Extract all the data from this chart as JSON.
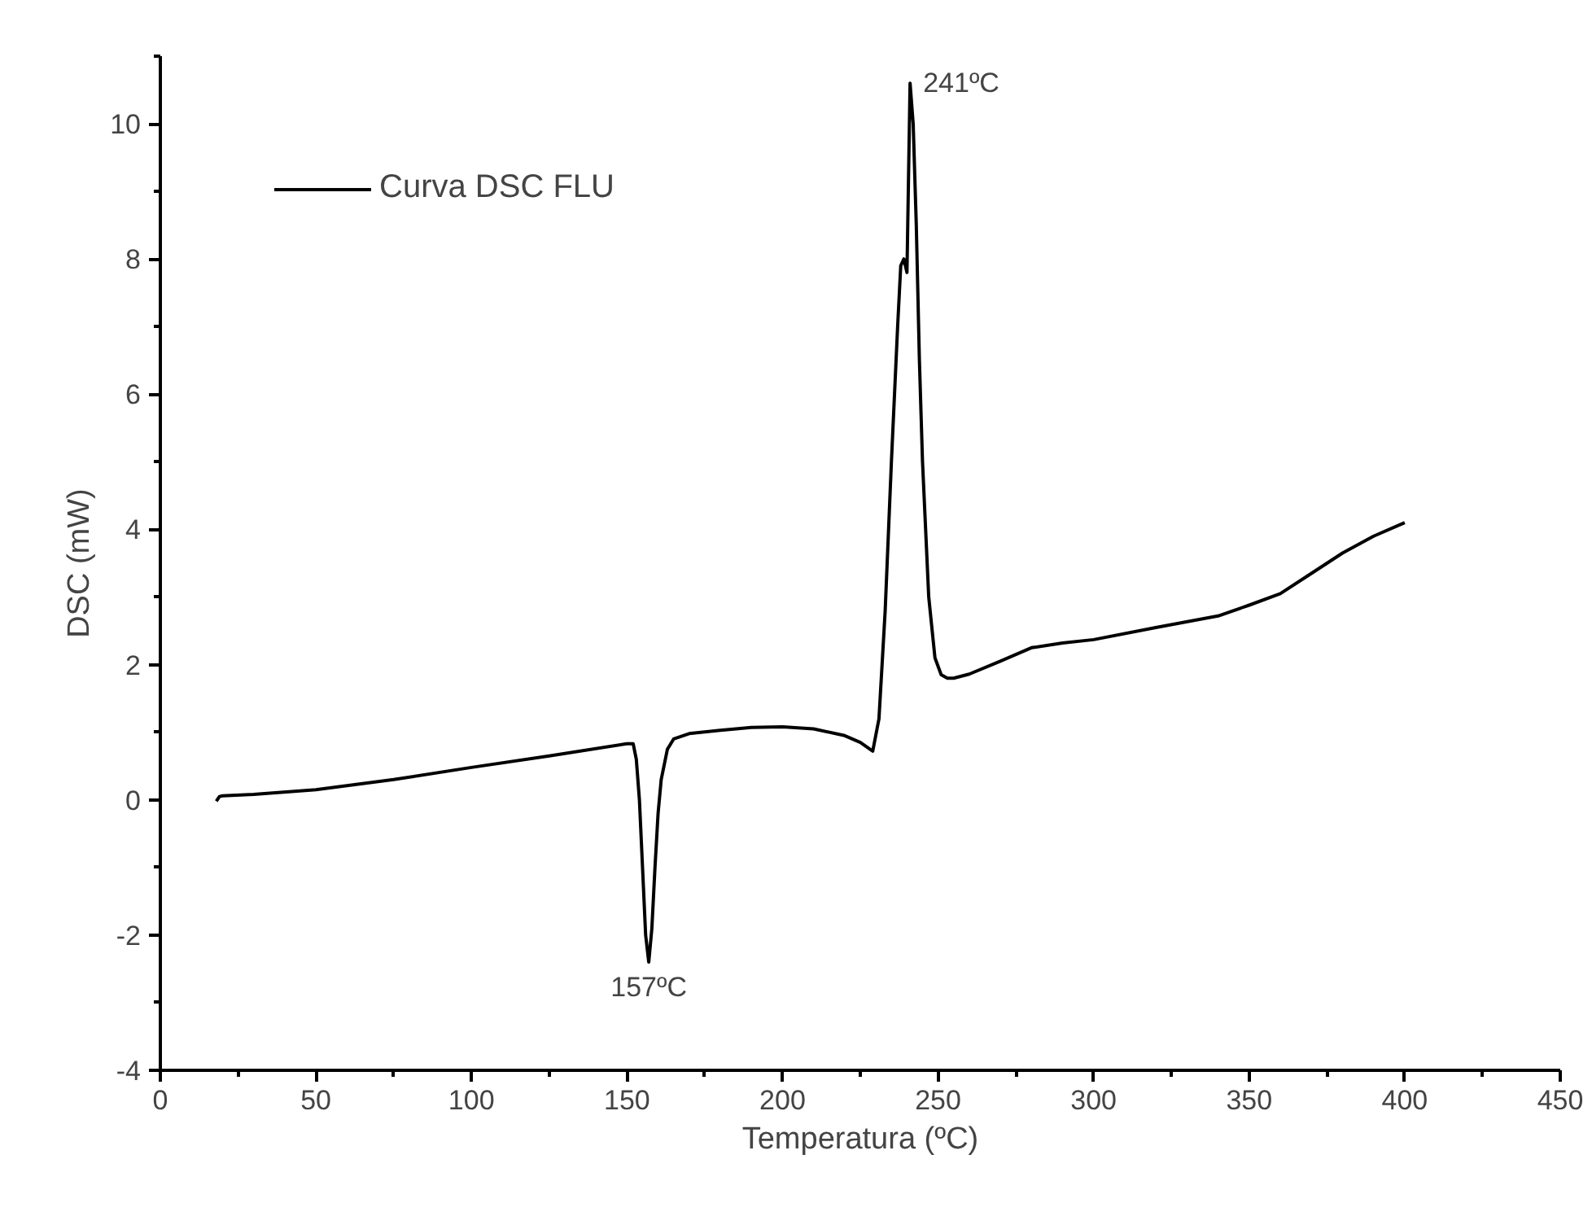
{
  "chart_data": {
    "type": "line",
    "xlabel": "Temperatura (ºC)",
    "ylabel": "DSC (mW)",
    "x": [
      18,
      19,
      20,
      30,
      50,
      75,
      100,
      125,
      150,
      152,
      153,
      154,
      155,
      156,
      157,
      158,
      159,
      160,
      161,
      163,
      165,
      170,
      180,
      190,
      200,
      210,
      220,
      225,
      229,
      231,
      233,
      235,
      237,
      238,
      239,
      240,
      241,
      242,
      243,
      244,
      245,
      247,
      249,
      251,
      253,
      255,
      260,
      270,
      280,
      290,
      300,
      320,
      340,
      350,
      360,
      370,
      380,
      390,
      400
    ],
    "series": [
      {
        "name": "Curva DSC FLU",
        "color": "#000000",
        "values": [
          -0.02,
          0.05,
          0.06,
          0.08,
          0.15,
          0.3,
          0.48,
          0.65,
          0.83,
          0.83,
          0.6,
          0.0,
          -1.0,
          -2.0,
          -2.4,
          -1.9,
          -1.0,
          -0.2,
          0.3,
          0.75,
          0.9,
          0.98,
          1.03,
          1.07,
          1.08,
          1.05,
          0.95,
          0.85,
          0.72,
          1.2,
          2.8,
          5.0,
          7.0,
          7.9,
          8.0,
          7.8,
          10.6,
          10.0,
          8.5,
          6.5,
          5.0,
          3.0,
          2.1,
          1.85,
          1.8,
          1.8,
          1.86,
          2.05,
          2.25,
          2.32,
          2.37,
          2.55,
          2.72,
          2.88,
          3.05,
          3.35,
          3.65,
          3.9,
          4.1
        ]
      }
    ],
    "xlim": [
      0,
      450
    ],
    "xticks": [
      0,
      50,
      100,
      150,
      200,
      250,
      300,
      350,
      400,
      450
    ],
    "ylim": [
      -4,
      11
    ],
    "yticks": [
      -4,
      -2,
      0,
      2,
      4,
      6,
      8,
      10
    ],
    "annotations": [
      {
        "text": "241ºC",
        "x": 241,
        "y": 10.6
      },
      {
        "text": "157ºC",
        "x": 157,
        "y": -2.4
      }
    ],
    "grid": false,
    "legend": "top left",
    "line_style": "solid",
    "marker": "none"
  }
}
